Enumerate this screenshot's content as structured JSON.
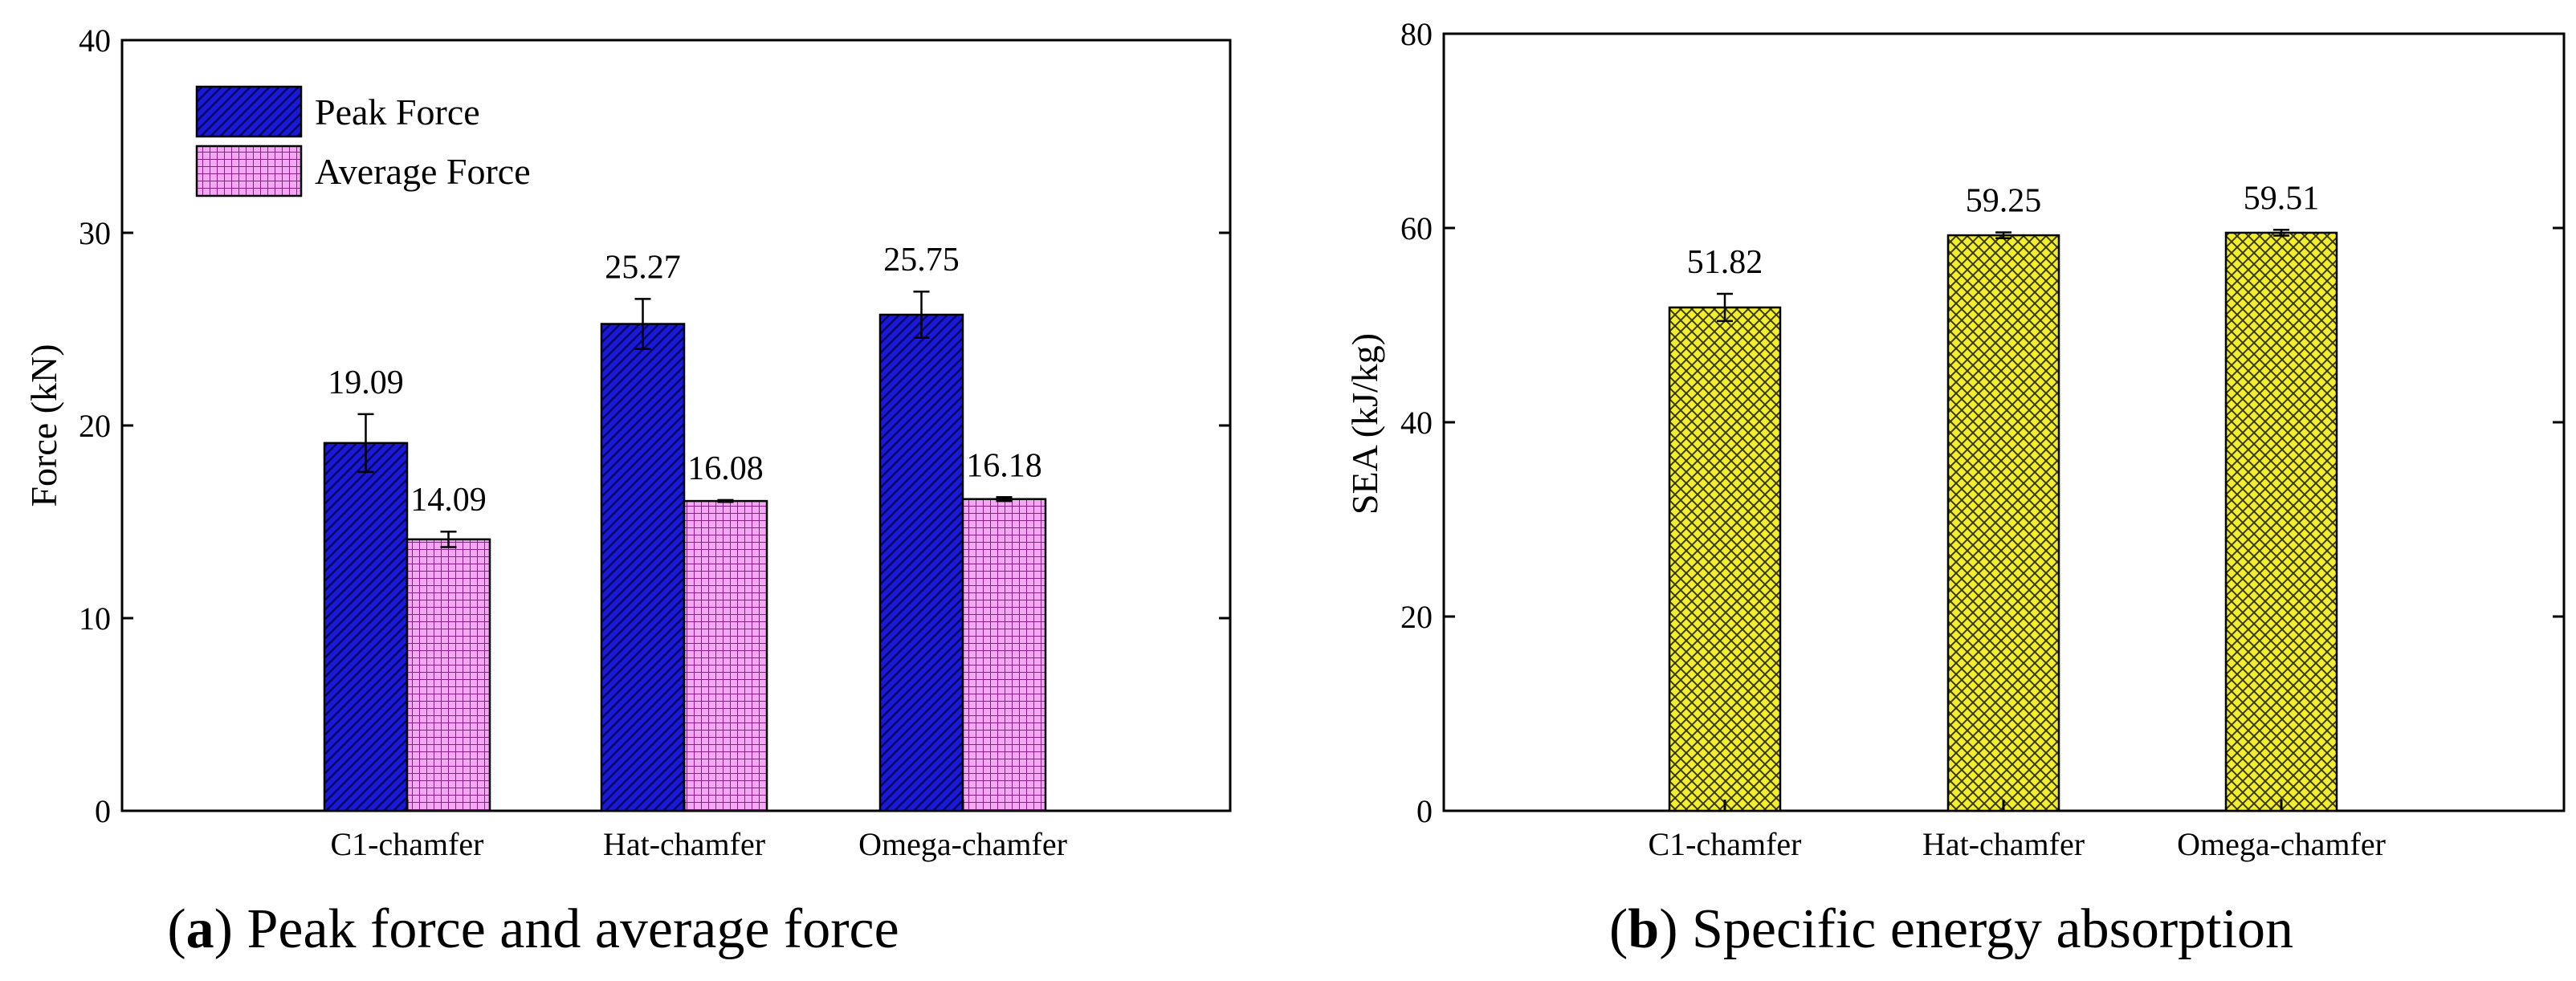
{
  "chart_data": [
    {
      "type": "bar",
      "panel_letter": "a",
      "caption": "Peak force and average force",
      "ylabel": "Force (kN)",
      "xlabel": "",
      "ylim": [
        0,
        40
      ],
      "yticks": [
        0,
        10,
        20,
        30,
        40
      ],
      "categories": [
        "C1-chamfer",
        "Hat-chamfer",
        "Omega-chamfer"
      ],
      "legend_position": "top-left",
      "series": [
        {
          "name": "Peak Force",
          "values": [
            19.09,
            25.27,
            25.75
          ],
          "value_labels": [
            "19.09",
            "25.27",
            "25.75"
          ],
          "errors": [
            1.5,
            1.3,
            1.2
          ],
          "color": "#1a1ad6",
          "pattern": "diagonal-hatch"
        },
        {
          "name": "Average Force",
          "values": [
            14.09,
            16.08,
            16.18
          ],
          "value_labels": [
            "14.09",
            "16.08",
            "16.18"
          ],
          "errors": [
            0.4,
            0.05,
            0.1
          ],
          "color": "#e88ce8",
          "pattern": "grid"
        }
      ]
    },
    {
      "type": "bar",
      "panel_letter": "b",
      "caption": "Specific energy absorption",
      "ylabel": "SEA (kJ/kg)",
      "xlabel": "",
      "ylim": [
        0,
        80
      ],
      "yticks": [
        0,
        20,
        40,
        60,
        80
      ],
      "categories": [
        "C1-chamfer",
        "Hat-chamfer",
        "Omega-chamfer"
      ],
      "series": [
        {
          "name": "SEA",
          "values": [
            51.82,
            59.25,
            59.51
          ],
          "value_labels": [
            "51.82",
            "59.25",
            "59.51"
          ],
          "errors": [
            1.4,
            0.3,
            0.3
          ],
          "color": "#f2ee2e",
          "pattern": "crosshatch"
        }
      ]
    }
  ],
  "colors": {
    "axis": "#000000",
    "peak_fill": "#1a1ad6",
    "average_fill": "#e88ce8",
    "sea_fill": "#f2ee2e"
  }
}
